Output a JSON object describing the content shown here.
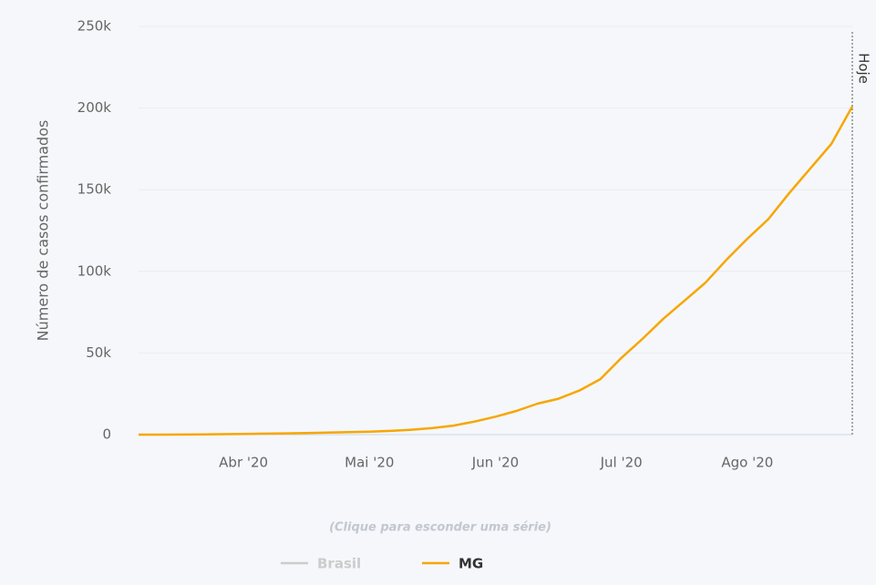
{
  "chart_data": {
    "type": "line",
    "y_label": "Número de casos confirmados",
    "annotation": "Hoje",
    "legend_hint": "(Clique para esconder uma série)",
    "categories": [
      null,
      null,
      null,
      null,
      null,
      "Abr '20",
      null,
      null,
      null,
      null,
      null,
      "Mai '20",
      null,
      null,
      null,
      null,
      null,
      "Jun '20",
      null,
      null,
      null,
      null,
      null,
      "Jul '20",
      null,
      null,
      null,
      null,
      null,
      "Ago '20",
      null,
      null,
      null,
      null,
      null
    ],
    "series": [
      {
        "name": "Brasil",
        "color": "#cccccc",
        "hidden": true,
        "values": [
          null,
          null,
          null,
          null,
          null,
          null,
          null,
          null,
          null,
          null,
          null,
          null,
          null,
          null,
          null,
          null,
          null,
          null,
          null,
          null,
          null,
          null,
          null,
          null,
          null,
          null,
          null,
          null,
          null,
          null,
          null,
          null,
          null,
          null,
          null
        ]
      },
      {
        "name": "MG",
        "color": "#f7a600",
        "hidden": false,
        "values": [
          0,
          0,
          50,
          150,
          300,
          400,
          600,
          800,
          1000,
          1200,
          1500,
          1800,
          2300,
          3000,
          4000,
          5500,
          8000,
          11000,
          14500,
          19000,
          22000,
          27000,
          34000,
          47000,
          58600,
          71000,
          82000,
          93000,
          107000,
          120000,
          132000,
          148000,
          163000,
          178000,
          201000
        ]
      }
    ],
    "ylim": [
      0,
      250000
    ],
    "yticks": [
      0,
      {
        "value": 50000,
        "label": "50k"
      },
      {
        "value": 100000,
        "label": "100k"
      },
      {
        "value": 150000,
        "label": "150k"
      },
      {
        "value": 200000,
        "label": "200k"
      },
      {
        "value": 250000,
        "label": "250k"
      }
    ],
    "grid": true
  }
}
